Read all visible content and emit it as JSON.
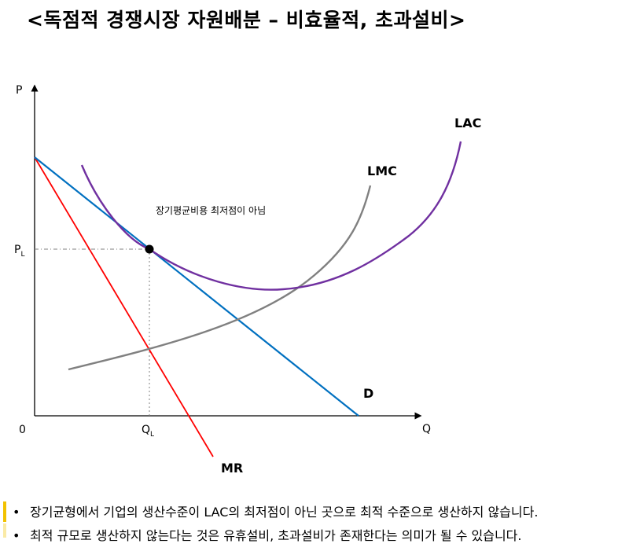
{
  "title": "<독점적 경쟁시장 자원배분 – 비효율적, 초과설비>",
  "diagram": {
    "axis_y_label": "P",
    "axis_x_label": "Q",
    "origin_label": "0",
    "price_label_main": "P",
    "price_label_sub": "L",
    "qty_label_main": "Q",
    "qty_label_sub": "L",
    "curve_labels": {
      "lac": "LAC",
      "lmc": "LMC",
      "demand": "D",
      "mr": "MR"
    },
    "annotation": "장기평균비용 최저점이 아님",
    "colors": {
      "lac": "#7030a0",
      "lmc": "#808080",
      "demand": "#0070c0",
      "mr": "#ff0000",
      "guide": "#7f7f7f",
      "point": "#000000"
    }
  },
  "bullets": [
    "장기균형에서 기업의 생산수준이 LAC의 최저점이 아닌 곳으로 최적 수준으로 생산하지 않습니다.",
    "최적 규모로 생산하지 않는다는 것은 유휴설비, 초과설비가 존재한다는 의미가 될 수 있습니다."
  ],
  "bullet_symbol": "•",
  "accent_color": "#f2c200"
}
